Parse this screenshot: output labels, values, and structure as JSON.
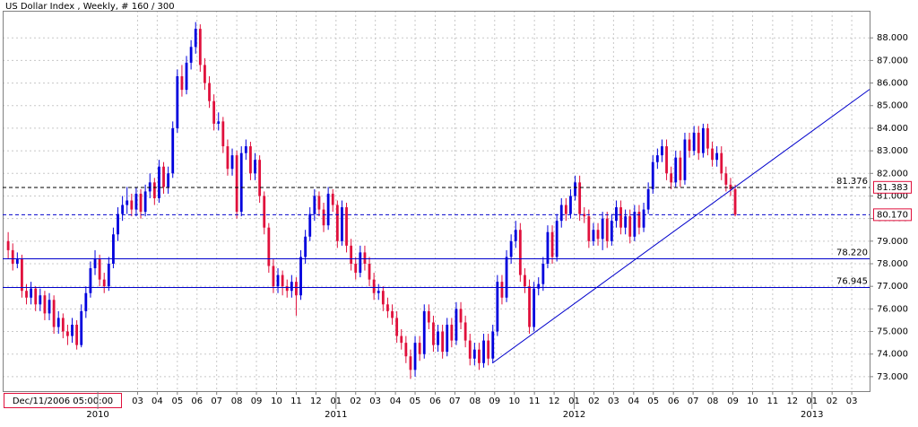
{
  "chart_data": {
    "type": "candlestick",
    "title": "US Dollar Index , Weekly, # 160 / 300",
    "cursor_label": "Dec/11/2006 05:00:00",
    "up_color": "#0000dd",
    "down_color": "#e0103c",
    "grid": true,
    "xlim": [
      -1.2,
      188.4
    ],
    "ylim": [
      72.36,
      89.2
    ],
    "yticks": [
      {
        "value": 73,
        "label": "73.000"
      },
      {
        "value": 74,
        "label": "74.000"
      },
      {
        "value": 75,
        "label": "75.000"
      },
      {
        "value": 76,
        "label": "76.000"
      },
      {
        "value": 77,
        "label": "77.000"
      },
      {
        "value": 78,
        "label": "78.000"
      },
      {
        "value": 79,
        "label": "79.000"
      },
      {
        "value": 80,
        "label": "80.000"
      },
      {
        "value": 81,
        "label": "81.000"
      },
      {
        "value": 82,
        "label": "82.000"
      },
      {
        "value": 83,
        "label": "83.000"
      },
      {
        "value": 84,
        "label": "84.000"
      },
      {
        "value": 85,
        "label": "85.000"
      },
      {
        "value": 86,
        "label": "86.000"
      },
      {
        "value": 87,
        "label": "87.000"
      },
      {
        "value": 88,
        "label": "88.000"
      }
    ],
    "xticks": [
      {
        "value": 28.3,
        "label": "03"
      },
      {
        "value": 32.6,
        "label": "04"
      },
      {
        "value": 37.0,
        "label": "05"
      },
      {
        "value": 41.3,
        "label": "06"
      },
      {
        "value": 45.6,
        "label": "07"
      },
      {
        "value": 50.0,
        "label": "08"
      },
      {
        "value": 54.3,
        "label": "09"
      },
      {
        "value": 58.7,
        "label": "10"
      },
      {
        "value": 63.0,
        "label": "11"
      },
      {
        "value": 67.3,
        "label": "12"
      },
      {
        "value": 71.7,
        "label": "01"
      },
      {
        "value": 76.0,
        "label": "02"
      },
      {
        "value": 80.3,
        "label": "03"
      },
      {
        "value": 84.7,
        "label": "04"
      },
      {
        "value": 89.0,
        "label": "05"
      },
      {
        "value": 93.4,
        "label": "06"
      },
      {
        "value": 97.7,
        "label": "07"
      },
      {
        "value": 102.1,
        "label": "08"
      },
      {
        "value": 106.4,
        "label": "09"
      },
      {
        "value": 110.7,
        "label": "10"
      },
      {
        "value": 115.1,
        "label": "11"
      },
      {
        "value": 119.4,
        "label": "12"
      },
      {
        "value": 123.8,
        "label": "01"
      },
      {
        "value": 128.1,
        "label": "02"
      },
      {
        "value": 132.4,
        "label": "03"
      },
      {
        "value": 136.8,
        "label": "04"
      },
      {
        "value": 141.1,
        "label": "05"
      },
      {
        "value": 145.5,
        "label": "06"
      },
      {
        "value": 149.8,
        "label": "07"
      },
      {
        "value": 154.1,
        "label": "08"
      },
      {
        "value": 158.5,
        "label": "09"
      },
      {
        "value": 162.8,
        "label": "10"
      },
      {
        "value": 167.2,
        "label": "11"
      },
      {
        "value": 171.5,
        "label": "12"
      },
      {
        "value": 175.8,
        "label": "01"
      },
      {
        "value": 180.2,
        "label": "02"
      },
      {
        "value": 184.5,
        "label": "03"
      }
    ],
    "year_ticks": [
      {
        "value": 19.6,
        "label": "2010"
      },
      {
        "value": 71.7,
        "label": "2011"
      },
      {
        "value": 123.8,
        "label": "2012"
      },
      {
        "value": 175.8,
        "label": "2013"
      }
    ],
    "levels": [
      {
        "value": 81.376,
        "color": "#000000",
        "style": "dashed"
      },
      {
        "value": 80.17,
        "color": "#0000cc",
        "style": "dashed"
      },
      {
        "value": 78.22,
        "label": "78.220",
        "color": "#0000cc",
        "style": "solid"
      },
      {
        "value": 76.945,
        "label": "76.945",
        "color": "#0000cc",
        "style": "solid"
      }
    ],
    "price_markers": [
      {
        "value": 81.383,
        "label": "81.383"
      },
      {
        "value": 80.17,
        "label": "80.170"
      }
    ],
    "trendline": {
      "x": [
        105.9,
        188.4
      ],
      "y": [
        73.6,
        85.72
      ],
      "color": "#0000cc"
    },
    "candles": [
      [
        79.0,
        79.4,
        78.2,
        78.6
      ],
      [
        78.6,
        78.9,
        77.7,
        78.0
      ],
      [
        78.0,
        78.5,
        77.8,
        78.2
      ],
      [
        78.2,
        78.4,
        76.5,
        76.8
      ],
      [
        76.8,
        77.1,
        76.2,
        76.5
      ],
      [
        76.5,
        77.2,
        76.2,
        76.9
      ],
      [
        76.9,
        77.0,
        75.9,
        76.2
      ],
      [
        76.2,
        76.9,
        75.9,
        76.6
      ],
      [
        76.6,
        76.8,
        75.5,
        75.8
      ],
      [
        75.8,
        76.7,
        75.5,
        76.4
      ],
      [
        76.4,
        76.6,
        74.9,
        75.2
      ],
      [
        75.2,
        75.9,
        74.9,
        75.6
      ],
      [
        75.6,
        75.8,
        74.7,
        75.0
      ],
      [
        75.0,
        75.3,
        74.4,
        74.8
      ],
      [
        74.8,
        75.6,
        74.5,
        75.3
      ],
      [
        75.3,
        75.5,
        74.2,
        74.4
      ],
      [
        74.4,
        76.2,
        74.3,
        75.9
      ],
      [
        75.9,
        77.0,
        75.6,
        76.7
      ],
      [
        76.7,
        78.1,
        76.5,
        77.8
      ],
      [
        77.8,
        78.6,
        77.5,
        78.2
      ],
      [
        78.2,
        78.4,
        77.0,
        77.3
      ],
      [
        77.3,
        77.6,
        76.7,
        77.0
      ],
      [
        77.0,
        78.3,
        76.8,
        78.0
      ],
      [
        78.0,
        79.6,
        77.8,
        79.3
      ],
      [
        79.3,
        80.5,
        79.0,
        80.2
      ],
      [
        80.2,
        81.0,
        79.9,
        80.6
      ],
      [
        80.6,
        81.4,
        80.2,
        80.8
      ],
      [
        80.8,
        81.1,
        80.1,
        80.4
      ],
      [
        80.4,
        81.4,
        80.1,
        81.1
      ],
      [
        81.1,
        81.3,
        80.0,
        80.3
      ],
      [
        80.3,
        81.5,
        80.1,
        81.2
      ],
      [
        81.2,
        82.0,
        80.9,
        81.6
      ],
      [
        81.6,
        81.8,
        80.6,
        80.9
      ],
      [
        80.9,
        82.6,
        80.7,
        82.3
      ],
      [
        82.3,
        82.5,
        81.1,
        81.4
      ],
      [
        81.4,
        82.3,
        81.1,
        82.0
      ],
      [
        82.0,
        84.3,
        81.8,
        84.0
      ],
      [
        84.0,
        86.6,
        83.8,
        86.3
      ],
      [
        86.3,
        86.8,
        85.4,
        85.7
      ],
      [
        85.7,
        87.2,
        85.5,
        86.9
      ],
      [
        86.9,
        87.9,
        86.6,
        87.6
      ],
      [
        87.6,
        88.7,
        87.3,
        88.4
      ],
      [
        88.4,
        88.6,
        86.5,
        86.8
      ],
      [
        86.8,
        87.1,
        85.7,
        86.0
      ],
      [
        86.0,
        86.3,
        84.9,
        85.2
      ],
      [
        85.2,
        85.5,
        83.9,
        84.2
      ],
      [
        84.2,
        84.7,
        83.9,
        84.3
      ],
      [
        84.3,
        84.5,
        82.9,
        83.2
      ],
      [
        83.2,
        83.5,
        81.9,
        82.2
      ],
      [
        82.2,
        83.1,
        81.9,
        82.8
      ],
      [
        82.8,
        83.0,
        80.0,
        80.3
      ],
      [
        80.3,
        83.2,
        80.1,
        82.9
      ],
      [
        82.9,
        83.5,
        82.6,
        83.2
      ],
      [
        83.2,
        83.4,
        81.7,
        82.0
      ],
      [
        82.0,
        82.9,
        81.7,
        82.6
      ],
      [
        82.6,
        82.8,
        80.7,
        81.0
      ],
      [
        81.0,
        81.2,
        79.3,
        79.6
      ],
      [
        79.6,
        79.8,
        77.6,
        77.9
      ],
      [
        77.9,
        78.2,
        76.7,
        77.0
      ],
      [
        77.0,
        77.8,
        76.7,
        77.5
      ],
      [
        77.5,
        77.7,
        76.6,
        77.0
      ],
      [
        77.0,
        77.3,
        76.5,
        76.8
      ],
      [
        76.8,
        77.5,
        76.5,
        77.2
      ],
      [
        77.2,
        77.4,
        75.7,
        76.6
      ],
      [
        76.6,
        78.6,
        76.4,
        78.3
      ],
      [
        78.3,
        79.5,
        78.0,
        79.2
      ],
      [
        79.2,
        80.5,
        79.0,
        80.2
      ],
      [
        80.2,
        81.3,
        79.9,
        81.0
      ],
      [
        81.0,
        81.2,
        80.1,
        80.4
      ],
      [
        80.4,
        80.7,
        79.4,
        79.7
      ],
      [
        79.7,
        81.4,
        79.5,
        81.1
      ],
      [
        81.1,
        81.3,
        80.3,
        80.6
      ],
      [
        80.6,
        80.8,
        78.7,
        79.0
      ],
      [
        79.0,
        80.8,
        78.8,
        80.5
      ],
      [
        80.5,
        80.7,
        78.5,
        78.8
      ],
      [
        78.8,
        79.1,
        77.7,
        78.0
      ],
      [
        78.0,
        78.3,
        77.3,
        77.6
      ],
      [
        77.6,
        78.8,
        77.4,
        78.5
      ],
      [
        78.5,
        78.8,
        77.7,
        78.0
      ],
      [
        78.0,
        78.3,
        77.0,
        77.3
      ],
      [
        77.3,
        77.6,
        76.4,
        76.7
      ],
      [
        76.7,
        77.1,
        76.4,
        76.8
      ],
      [
        76.8,
        77.0,
        75.9,
        76.2
      ],
      [
        76.2,
        76.5,
        75.6,
        75.9
      ],
      [
        75.9,
        76.2,
        75.3,
        75.6
      ],
      [
        75.6,
        75.9,
        74.5,
        74.8
      ],
      [
        74.8,
        75.1,
        74.2,
        74.5
      ],
      [
        74.5,
        74.8,
        73.6,
        73.9
      ],
      [
        73.9,
        74.2,
        72.9,
        73.3
      ],
      [
        73.3,
        74.8,
        73.0,
        74.5
      ],
      [
        74.5,
        74.8,
        73.7,
        74.0
      ],
      [
        74.0,
        76.2,
        73.8,
        75.9
      ],
      [
        75.9,
        76.2,
        75.1,
        75.4
      ],
      [
        75.4,
        75.7,
        74.1,
        74.4
      ],
      [
        74.4,
        75.3,
        74.1,
        75.0
      ],
      [
        75.0,
        75.3,
        73.8,
        74.1
      ],
      [
        74.1,
        75.6,
        73.9,
        75.3
      ],
      [
        75.3,
        75.6,
        74.3,
        74.6
      ],
      [
        74.6,
        76.3,
        74.4,
        76.0
      ],
      [
        76.0,
        76.3,
        75.1,
        75.4
      ],
      [
        75.4,
        75.7,
        74.3,
        74.6
      ],
      [
        74.6,
        74.9,
        73.5,
        73.8
      ],
      [
        73.8,
        74.5,
        73.5,
        74.2
      ],
      [
        74.2,
        74.5,
        73.3,
        73.6
      ],
      [
        73.6,
        74.9,
        73.4,
        74.6
      ],
      [
        74.6,
        74.9,
        73.5,
        73.8
      ],
      [
        73.8,
        75.3,
        73.6,
        75.0
      ],
      [
        75.0,
        77.5,
        74.8,
        77.2
      ],
      [
        77.2,
        77.5,
        76.2,
        76.5
      ],
      [
        76.5,
        78.6,
        76.3,
        78.3
      ],
      [
        78.3,
        79.3,
        78.0,
        79.0
      ],
      [
        79.0,
        79.9,
        78.7,
        79.5
      ],
      [
        79.5,
        79.8,
        77.2,
        77.5
      ],
      [
        77.5,
        77.8,
        76.7,
        77.0
      ],
      [
        77.0,
        77.3,
        74.9,
        75.2
      ],
      [
        75.2,
        77.2,
        75.0,
        76.9
      ],
      [
        76.9,
        77.4,
        76.6,
        77.1
      ],
      [
        77.1,
        78.3,
        76.8,
        78.0
      ],
      [
        78.0,
        79.7,
        77.8,
        79.4
      ],
      [
        79.4,
        79.7,
        78.0,
        78.3
      ],
      [
        78.3,
        80.2,
        78.1,
        79.9
      ],
      [
        79.9,
        80.9,
        79.6,
        80.6
      ],
      [
        80.6,
        80.9,
        79.9,
        80.2
      ],
      [
        80.2,
        81.3,
        80.0,
        81.0
      ],
      [
        81.0,
        81.9,
        80.8,
        81.6
      ],
      [
        81.6,
        81.9,
        79.9,
        80.2
      ],
      [
        80.2,
        80.5,
        79.8,
        80.1
      ],
      [
        80.1,
        80.4,
        78.7,
        79.0
      ],
      [
        79.0,
        79.8,
        78.8,
        79.5
      ],
      [
        79.5,
        79.8,
        78.8,
        79.1
      ],
      [
        79.1,
        80.3,
        78.6,
        80.0
      ],
      [
        80.0,
        80.3,
        78.7,
        79.0
      ],
      [
        79.0,
        80.2,
        78.8,
        79.9
      ],
      [
        79.9,
        80.8,
        79.6,
        80.5
      ],
      [
        80.5,
        80.8,
        79.3,
        79.6
      ],
      [
        79.6,
        80.4,
        79.3,
        80.1
      ],
      [
        80.1,
        80.4,
        78.9,
        79.2
      ],
      [
        79.2,
        80.6,
        79.0,
        80.3
      ],
      [
        80.3,
        80.6,
        79.3,
        79.6
      ],
      [
        79.6,
        80.7,
        79.4,
        80.4
      ],
      [
        80.4,
        81.6,
        80.2,
        81.3
      ],
      [
        81.3,
        82.8,
        81.1,
        82.5
      ],
      [
        82.5,
        83.1,
        82.2,
        82.8
      ],
      [
        82.8,
        83.5,
        82.5,
        83.2
      ],
      [
        83.2,
        83.5,
        81.7,
        82.0
      ],
      [
        82.0,
        82.3,
        81.3,
        81.6
      ],
      [
        81.6,
        83.0,
        81.4,
        82.7
      ],
      [
        82.7,
        83.0,
        81.4,
        81.7
      ],
      [
        81.7,
        83.8,
        81.5,
        83.5
      ],
      [
        83.5,
        83.8,
        82.7,
        83.0
      ],
      [
        83.0,
        84.1,
        82.8,
        83.8
      ],
      [
        83.8,
        84.1,
        82.6,
        82.9
      ],
      [
        82.9,
        84.2,
        82.7,
        84.0
      ],
      [
        84.0,
        84.2,
        82.8,
        83.1
      ],
      [
        83.1,
        83.4,
        82.3,
        82.6
      ],
      [
        82.6,
        83.2,
        82.3,
        82.9
      ],
      [
        82.9,
        83.2,
        81.7,
        82.0
      ],
      [
        82.0,
        82.3,
        81.2,
        81.5
      ],
      [
        81.5,
        81.8,
        81.0,
        81.3
      ],
      [
        81.3,
        81.5,
        80.1,
        80.17
      ]
    ]
  }
}
